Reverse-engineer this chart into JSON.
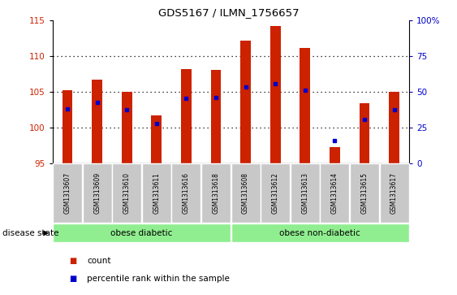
{
  "title": "GDS5167 / ILMN_1756657",
  "samples": [
    "GSM1313607",
    "GSM1313609",
    "GSM1313610",
    "GSM1313611",
    "GSM1313616",
    "GSM1313618",
    "GSM1313608",
    "GSM1313612",
    "GSM1313613",
    "GSM1313614",
    "GSM1313615",
    "GSM1313617"
  ],
  "bar_values": [
    105.3,
    106.7,
    105.1,
    101.8,
    108.2,
    108.1,
    112.2,
    114.3,
    111.2,
    97.3,
    103.5,
    105.1
  ],
  "percentile_values": [
    102.7,
    103.6,
    102.5,
    100.6,
    104.1,
    104.2,
    105.7,
    106.2,
    105.3,
    98.2,
    101.2,
    102.5
  ],
  "ymin": 95,
  "ymax": 115,
  "yticks_left": [
    95,
    100,
    105,
    110,
    115
  ],
  "grid_lines": [
    100,
    105,
    110
  ],
  "right_yticks_pct": [
    0,
    25,
    50,
    75,
    100
  ],
  "right_ytick_labels": [
    "0",
    "25",
    "50",
    "75",
    "100%"
  ],
  "bar_color": "#cc2200",
  "percentile_color": "#0000cc",
  "group1_label": "obese diabetic",
  "group2_label": "obese non-diabetic",
  "group1_indices": [
    0,
    1,
    2,
    3,
    4,
    5
  ],
  "group2_indices": [
    6,
    7,
    8,
    9,
    10,
    11
  ],
  "group_bg_color": "#90ee90",
  "tick_label_bg": "#c8c8c8",
  "legend_count_label": "count",
  "legend_percentile_label": "percentile rank within the sample",
  "disease_state_label": "disease state",
  "bar_width": 0.35
}
